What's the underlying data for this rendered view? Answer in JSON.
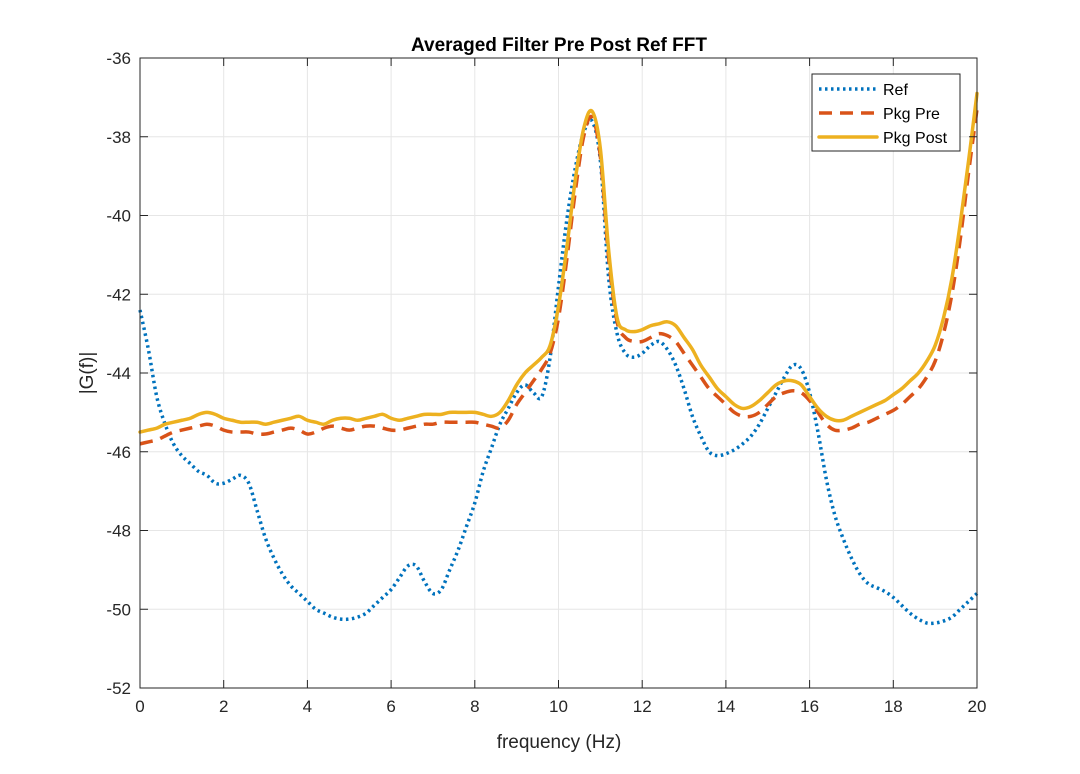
{
  "chart_data": {
    "type": "line",
    "title": "Averaged Filter Pre Post Ref FFT",
    "xlabel": "frequency (Hz)",
    "ylabel": "|G(f)|",
    "xlim": [
      0,
      20
    ],
    "ylim": [
      -52,
      -36
    ],
    "xticks": [
      0,
      2,
      4,
      6,
      8,
      10,
      12,
      14,
      16,
      18,
      20
    ],
    "yticks": [
      -52,
      -50,
      -48,
      -46,
      -44,
      -42,
      -40,
      -38,
      -36
    ],
    "grid": true,
    "legend_position": "top-right",
    "series": [
      {
        "name": "Ref",
        "color": "#0072BD",
        "style": "dotted",
        "x": [
          0,
          0.2,
          0.4,
          0.6,
          0.8,
          1.0,
          1.2,
          1.4,
          1.6,
          1.8,
          2.0,
          2.2,
          2.4,
          2.6,
          2.8,
          3.0,
          3.2,
          3.4,
          3.6,
          3.8,
          4.0,
          4.2,
          4.4,
          4.6,
          4.8,
          5.0,
          5.2,
          5.4,
          5.6,
          5.8,
          6.0,
          6.2,
          6.4,
          6.6,
          6.8,
          7.0,
          7.2,
          7.4,
          7.6,
          7.8,
          8.0,
          8.2,
          8.4,
          8.6,
          8.8,
          9.0,
          9.2,
          9.4,
          9.6,
          9.8,
          10.0,
          10.2,
          10.4,
          10.6,
          10.8,
          11.0,
          11.2,
          11.4,
          11.6,
          11.8,
          12.0,
          12.2,
          12.4,
          12.6,
          12.8,
          13.0,
          13.2,
          13.4,
          13.6,
          13.8,
          14.0,
          14.2,
          14.4,
          14.6,
          14.8,
          15.0,
          15.2,
          15.4,
          15.6,
          15.8,
          16.0,
          16.2,
          16.4,
          16.6,
          16.8,
          17.0,
          17.2,
          17.4,
          17.6,
          17.8,
          18.0,
          18.2,
          18.4,
          18.6,
          18.8,
          19.0,
          19.2,
          19.4,
          19.6,
          19.8,
          20.0
        ],
        "y": [
          -42.4,
          -43.4,
          -44.6,
          -45.3,
          -45.8,
          -46.1,
          -46.3,
          -46.5,
          -46.6,
          -46.8,
          -46.8,
          -46.7,
          -46.6,
          -46.8,
          -47.5,
          -48.2,
          -48.7,
          -49.1,
          -49.4,
          -49.6,
          -49.8,
          -50.0,
          -50.1,
          -50.2,
          -50.25,
          -50.25,
          -50.2,
          -50.1,
          -49.9,
          -49.7,
          -49.5,
          -49.2,
          -48.9,
          -48.9,
          -49.3,
          -49.6,
          -49.5,
          -49.0,
          -48.5,
          -47.9,
          -47.3,
          -46.5,
          -45.9,
          -45.3,
          -44.9,
          -44.5,
          -44.3,
          -44.5,
          -44.6,
          -43.6,
          -41.8,
          -40.1,
          -38.8,
          -37.9,
          -37.6,
          -38.6,
          -41.6,
          -43.0,
          -43.5,
          -43.6,
          -43.5,
          -43.3,
          -43.2,
          -43.4,
          -43.8,
          -44.4,
          -45.1,
          -45.6,
          -46.0,
          -46.1,
          -46.05,
          -45.95,
          -45.8,
          -45.6,
          -45.3,
          -44.9,
          -44.5,
          -44.1,
          -43.8,
          -43.9,
          -44.5,
          -45.5,
          -46.7,
          -47.6,
          -48.2,
          -48.7,
          -49.1,
          -49.35,
          -49.45,
          -49.55,
          -49.7,
          -49.9,
          -50.1,
          -50.25,
          -50.35,
          -50.35,
          -50.3,
          -50.2,
          -50.0,
          -49.8,
          -49.6
        ]
      },
      {
        "name": "Pkg Pre",
        "color": "#D95319",
        "style": "dashed",
        "x": [
          0,
          0.2,
          0.4,
          0.6,
          0.8,
          1.0,
          1.2,
          1.4,
          1.6,
          1.8,
          2.0,
          2.2,
          2.4,
          2.6,
          2.8,
          3.0,
          3.2,
          3.4,
          3.6,
          3.8,
          4.0,
          4.2,
          4.4,
          4.6,
          4.8,
          5.0,
          5.2,
          5.4,
          5.6,
          5.8,
          6.0,
          6.2,
          6.4,
          6.6,
          6.8,
          7.0,
          7.2,
          7.4,
          7.6,
          7.8,
          8.0,
          8.2,
          8.4,
          8.6,
          8.8,
          9.0,
          9.2,
          9.4,
          9.6,
          9.8,
          10.0,
          10.2,
          10.4,
          10.6,
          10.8,
          11.0,
          11.2,
          11.4,
          11.6,
          11.8,
          12.0,
          12.2,
          12.4,
          12.6,
          12.8,
          13.0,
          13.2,
          13.4,
          13.6,
          13.8,
          14.0,
          14.2,
          14.4,
          14.6,
          14.8,
          15.0,
          15.2,
          15.4,
          15.6,
          15.8,
          16.0,
          16.2,
          16.4,
          16.6,
          16.8,
          17.0,
          17.2,
          17.4,
          17.6,
          17.8,
          18.0,
          18.2,
          18.4,
          18.6,
          18.8,
          19.0,
          19.2,
          19.4,
          19.6,
          19.8,
          20.0
        ],
        "y": [
          -45.8,
          -45.75,
          -45.7,
          -45.6,
          -45.5,
          -45.45,
          -45.4,
          -45.35,
          -45.3,
          -45.35,
          -45.45,
          -45.5,
          -45.5,
          -45.5,
          -45.55,
          -45.55,
          -45.5,
          -45.45,
          -45.4,
          -45.45,
          -45.55,
          -45.5,
          -45.4,
          -45.35,
          -45.4,
          -45.45,
          -45.4,
          -45.35,
          -45.35,
          -45.4,
          -45.45,
          -45.45,
          -45.4,
          -45.35,
          -45.3,
          -45.3,
          -45.25,
          -45.25,
          -45.25,
          -45.25,
          -45.25,
          -45.3,
          -45.35,
          -45.4,
          -45.2,
          -44.8,
          -44.5,
          -44.2,
          -43.9,
          -43.5,
          -42.6,
          -41.1,
          -39.4,
          -38.0,
          -37.5,
          -38.5,
          -41.1,
          -42.7,
          -43.1,
          -43.2,
          -43.2,
          -43.1,
          -43.0,
          -43.05,
          -43.2,
          -43.5,
          -43.8,
          -44.1,
          -44.4,
          -44.6,
          -44.8,
          -45.0,
          -45.1,
          -45.1,
          -45.0,
          -44.8,
          -44.6,
          -44.5,
          -44.45,
          -44.5,
          -44.7,
          -45.0,
          -45.3,
          -45.45,
          -45.45,
          -45.4,
          -45.3,
          -45.25,
          -45.15,
          -45.05,
          -44.95,
          -44.8,
          -44.6,
          -44.4,
          -44.1,
          -43.7,
          -43.0,
          -42.0,
          -40.6,
          -38.9,
          -37.3
        ]
      },
      {
        "name": "Pkg Post",
        "color": "#EDB120",
        "style": "solid",
        "x": [
          0,
          0.2,
          0.4,
          0.6,
          0.8,
          1.0,
          1.2,
          1.4,
          1.6,
          1.8,
          2.0,
          2.2,
          2.4,
          2.6,
          2.8,
          3.0,
          3.2,
          3.4,
          3.6,
          3.8,
          4.0,
          4.2,
          4.4,
          4.6,
          4.8,
          5.0,
          5.2,
          5.4,
          5.6,
          5.8,
          6.0,
          6.2,
          6.4,
          6.6,
          6.8,
          7.0,
          7.2,
          7.4,
          7.6,
          7.8,
          8.0,
          8.2,
          8.4,
          8.6,
          8.8,
          9.0,
          9.2,
          9.4,
          9.6,
          9.8,
          10.0,
          10.2,
          10.4,
          10.6,
          10.8,
          11.0,
          11.2,
          11.4,
          11.6,
          11.8,
          12.0,
          12.2,
          12.4,
          12.6,
          12.8,
          13.0,
          13.2,
          13.4,
          13.6,
          13.8,
          14.0,
          14.2,
          14.4,
          14.6,
          14.8,
          15.0,
          15.2,
          15.4,
          15.6,
          15.8,
          16.0,
          16.2,
          16.4,
          16.6,
          16.8,
          17.0,
          17.2,
          17.4,
          17.6,
          17.8,
          18.0,
          18.2,
          18.4,
          18.6,
          18.8,
          19.0,
          19.2,
          19.4,
          19.6,
          19.8,
          20.0
        ],
        "y": [
          -45.5,
          -45.45,
          -45.4,
          -45.3,
          -45.25,
          -45.2,
          -45.15,
          -45.05,
          -45.0,
          -45.05,
          -45.15,
          -45.2,
          -45.25,
          -45.25,
          -45.25,
          -45.3,
          -45.25,
          -45.2,
          -45.15,
          -45.1,
          -45.2,
          -45.25,
          -45.3,
          -45.2,
          -45.15,
          -45.15,
          -45.2,
          -45.15,
          -45.1,
          -45.05,
          -45.15,
          -45.2,
          -45.15,
          -45.1,
          -45.05,
          -45.05,
          -45.05,
          -45.0,
          -45.0,
          -45.0,
          -45.0,
          -45.05,
          -45.1,
          -45.0,
          -44.7,
          -44.3,
          -44.0,
          -43.8,
          -43.6,
          -43.3,
          -42.3,
          -40.8,
          -39.1,
          -37.8,
          -37.35,
          -38.3,
          -40.9,
          -42.6,
          -42.9,
          -42.95,
          -42.9,
          -42.8,
          -42.75,
          -42.7,
          -42.8,
          -43.1,
          -43.4,
          -43.8,
          -44.1,
          -44.4,
          -44.6,
          -44.8,
          -44.9,
          -44.85,
          -44.7,
          -44.5,
          -44.3,
          -44.2,
          -44.2,
          -44.3,
          -44.6,
          -44.9,
          -45.1,
          -45.2,
          -45.2,
          -45.1,
          -45.0,
          -44.9,
          -44.8,
          -44.7,
          -44.55,
          -44.4,
          -44.2,
          -44.0,
          -43.7,
          -43.3,
          -42.6,
          -41.6,
          -40.2,
          -38.6,
          -36.9
        ]
      }
    ]
  }
}
